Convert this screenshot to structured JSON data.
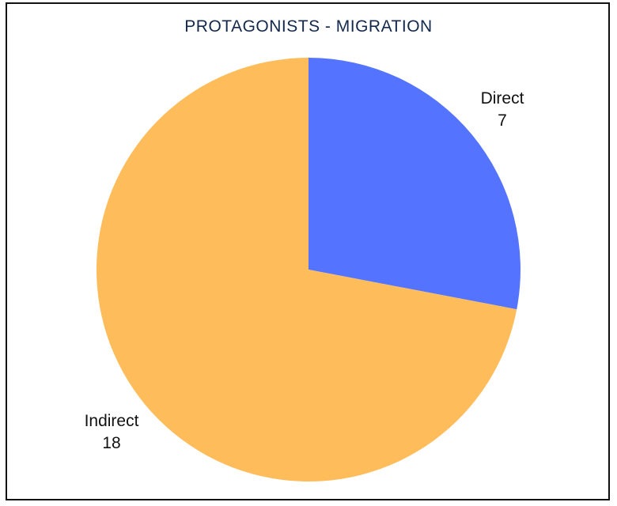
{
  "chart_data": {
    "type": "pie",
    "title": "PROTAGONISTS - MIGRATION",
    "slices": [
      {
        "label": "Direct",
        "value": 7,
        "color": "#5474ff"
      },
      {
        "label": "Indirect",
        "value": 18,
        "color": "#ffbc5a"
      }
    ],
    "start_angle": "top, clockwise",
    "legend": "none"
  }
}
